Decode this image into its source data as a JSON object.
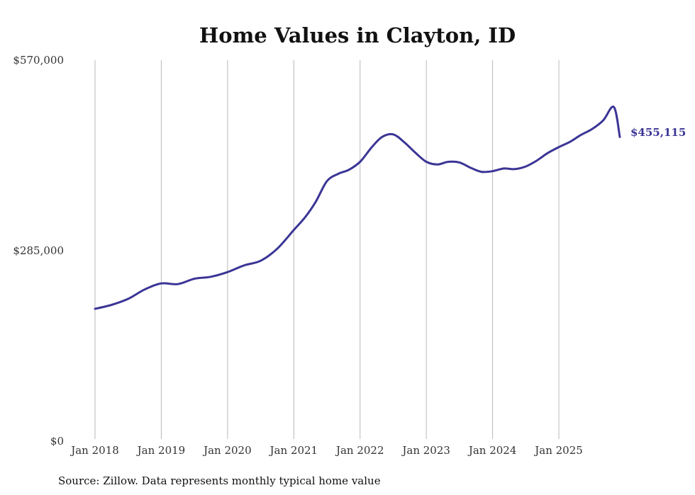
{
  "chart_data": {
    "type": "line",
    "title": "Home Values in Clayton, ID",
    "xlabel": "",
    "ylabel": "",
    "ylim": [
      0,
      570000
    ],
    "yticks": [
      0,
      285000,
      570000
    ],
    "ytick_labels": [
      "$0",
      "$285,000",
      "$570,000"
    ],
    "xlim": [
      2018.0,
      2025.92
    ],
    "xticks": [
      2018,
      2019,
      2020,
      2021,
      2022,
      2023,
      2024,
      2025
    ],
    "xtick_labels": [
      "Jan 2018",
      "Jan 2019",
      "Jan 2020",
      "Jan 2021",
      "Jan 2022",
      "Jan 2023",
      "Jan 2024",
      "Jan 2025"
    ],
    "grid": "vertical",
    "color": "#3b3596",
    "end_label": "$455,115",
    "series": [
      {
        "name": "Typical home value",
        "x": [
          2018.0,
          2018.25,
          2018.5,
          2018.75,
          2019.0,
          2019.25,
          2019.5,
          2019.75,
          2020.0,
          2020.25,
          2020.5,
          2020.75,
          2021.0,
          2021.17,
          2021.33,
          2021.5,
          2021.67,
          2021.83,
          2022.0,
          2022.17,
          2022.33,
          2022.5,
          2022.67,
          2022.83,
          2023.0,
          2023.17,
          2023.33,
          2023.5,
          2023.67,
          2023.83,
          2024.0,
          2024.17,
          2024.33,
          2024.5,
          2024.67,
          2024.83,
          2025.0,
          2025.17,
          2025.33,
          2025.5,
          2025.67,
          2025.83,
          2025.92
        ],
        "values": [
          198000,
          204000,
          213000,
          227000,
          236000,
          235000,
          243000,
          246000,
          253000,
          263000,
          270000,
          288000,
          316000,
          335000,
          358000,
          389000,
          400000,
          406000,
          418000,
          439000,
          455000,
          459000,
          447000,
          432000,
          418000,
          414000,
          418000,
          417000,
          409000,
          403000,
          404000,
          408000,
          407000,
          411000,
          420000,
          431000,
          440000,
          448000,
          458000,
          467000,
          480000,
          500000,
          455115
        ]
      }
    ],
    "source": "Source: Zillow. Data represents monthly typical home value"
  }
}
